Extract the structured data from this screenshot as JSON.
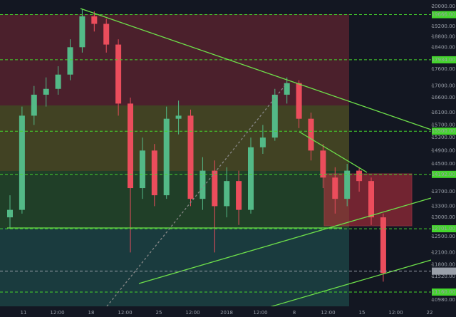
{
  "chart_data": {
    "type": "candlestick",
    "x_labels": [
      "11",
      "12:00",
      "18",
      "12:00",
      "25",
      "12:00",
      "2018",
      "12:00",
      "8",
      "12:00",
      "15",
      "12:00",
      "22"
    ],
    "open": [
      13000,
      13200,
      16000,
      16700,
      16900,
      17400,
      18400,
      19600,
      19300,
      18500,
      16400,
      13800,
      14900,
      13600,
      15900,
      16000,
      13500,
      14300,
      13300,
      14000,
      13200,
      15000,
      15300,
      16700,
      17100,
      15900,
      14900,
      14100,
      13500,
      14300,
      14000,
      13000
    ],
    "high": [
      13600,
      16300,
      17000,
      17300,
      17700,
      18700,
      19900,
      19800,
      19500,
      18700,
      16600,
      15300,
      15100,
      16300,
      16500,
      16200,
      14700,
      14600,
      14400,
      14300,
      15300,
      15700,
      16900,
      17300,
      17200,
      16100,
      15100,
      14400,
      14500,
      14400,
      14100,
      13100
    ],
    "low": [
      12700,
      13100,
      15700,
      16300,
      16700,
      17200,
      18200,
      19000,
      18200,
      16000,
      12100,
      13500,
      13300,
      13500,
      15400,
      13300,
      13200,
      12100,
      13000,
      12800,
      13100,
      14800,
      15200,
      16400,
      15600,
      14600,
      13800,
      13100,
      13300,
      13700,
      12800,
      11400
    ],
    "close": [
      13200,
      16000,
      16700,
      16900,
      17400,
      18400,
      19600,
      19300,
      18500,
      16400,
      13800,
      14900,
      13600,
      15900,
      16000,
      13500,
      14300,
      13300,
      14000,
      13200,
      15000,
      15300,
      16700,
      17100,
      15900,
      14900,
      14100,
      13500,
      14300,
      14000,
      13000,
      11600
    ],
    "up_color": "#53b987",
    "down_color": "#eb4d5c",
    "log_scale": true,
    "ylim": [
      10840,
      20263
    ],
    "yticks": [
      {
        "value": 20000,
        "label": "20000.00"
      },
      {
        "value": 19200,
        "label": "19200.00"
      },
      {
        "value": 18800,
        "label": "18800.00"
      },
      {
        "value": 18400,
        "label": "18400.00"
      },
      {
        "value": 17600,
        "label": "17600.00"
      },
      {
        "value": 17000,
        "label": "17000.00"
      },
      {
        "value": 16600,
        "label": "16600.00"
      },
      {
        "value": 16100,
        "label": "16100.00"
      },
      {
        "value": 15700,
        "label": "15700.00"
      },
      {
        "value": 15300,
        "label": "15300.00"
      },
      {
        "value": 14900,
        "label": "14900.00"
      },
      {
        "value": 14500,
        "label": "14500.00"
      },
      {
        "value": 13700,
        "label": "13700.00"
      },
      {
        "value": 13300,
        "label": "13300.00"
      },
      {
        "value": 13000,
        "label": "13000.00"
      },
      {
        "value": 12500,
        "label": "12500.00"
      },
      {
        "value": 12100,
        "label": "12100.00"
      },
      {
        "value": 11800,
        "label": "11800.00"
      },
      {
        "value": 11520,
        "label": "11520.00"
      },
      {
        "value": 10980,
        "label": "10980.00"
      }
    ],
    "levels": [
      {
        "value": 19666,
        "label": "19666.00",
        "color": "#44d62c"
      },
      {
        "value": 17934,
        "label": "17934.00",
        "color": "#44d62c"
      },
      {
        "value": 15500,
        "label": "15500.00",
        "color": "#44d62c"
      },
      {
        "value": 14192,
        "label": "14192.00",
        "color": "#44d62c"
      },
      {
        "value": 12701,
        "label": "12701.00",
        "color": "#44d62c"
      },
      {
        "value": 11647.77,
        "label": "11647.77",
        "color": "#9aa0aa"
      },
      {
        "value": 11160,
        "label": "11160.00",
        "color": "#44d62c"
      }
    ]
  }
}
